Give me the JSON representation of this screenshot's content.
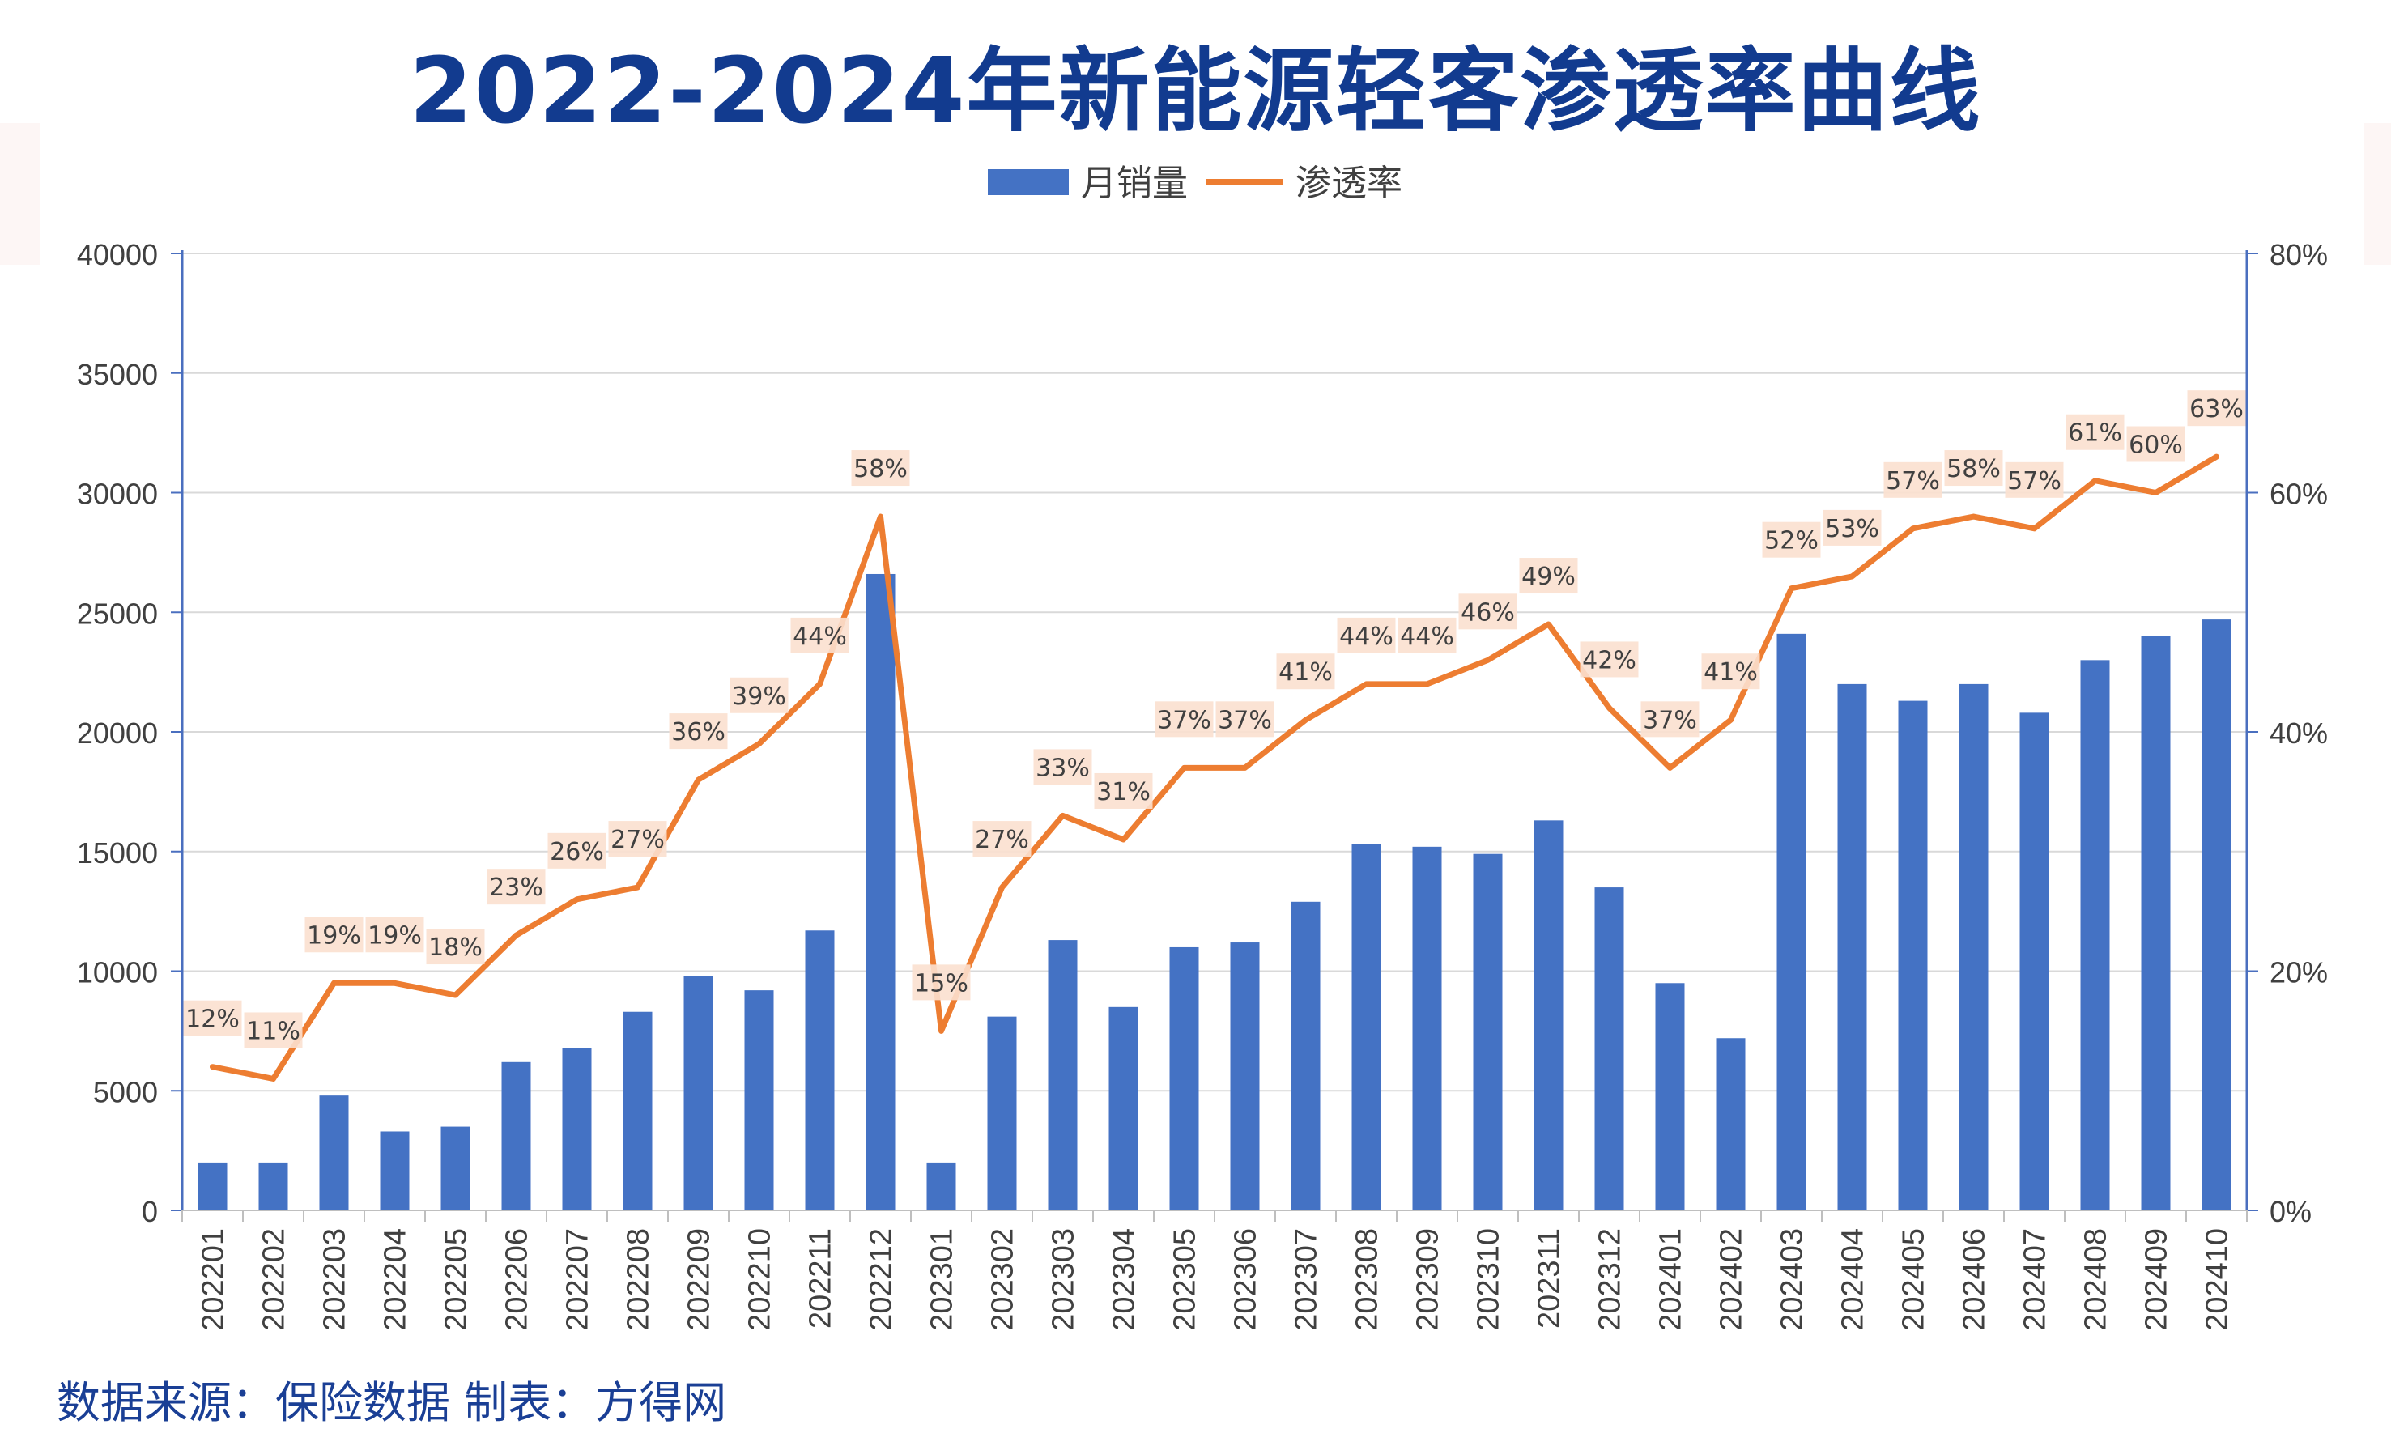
{
  "title": "2022-2024年新能源轻客渗透率曲线",
  "source_note": "数据来源：保险数据 制表：方得网",
  "chart_data": {
    "type": "bar",
    "categories": [
      "202201",
      "202202",
      "202203",
      "202204",
      "202205",
      "202206",
      "202207",
      "202208",
      "202209",
      "202210",
      "202211",
      "202212",
      "202301",
      "202302",
      "202303",
      "202304",
      "202305",
      "202306",
      "202307",
      "202308",
      "202309",
      "202310",
      "202311",
      "202312",
      "202401",
      "202402",
      "202403",
      "202404",
      "202405",
      "202406",
      "202407",
      "202408",
      "202409",
      "202410"
    ],
    "series": [
      {
        "name": "月销量",
        "type": "bar",
        "axis": "left",
        "color": "#4472c4",
        "values": [
          2000,
          2000,
          4800,
          3300,
          3500,
          6200,
          6800,
          8300,
          9800,
          9200,
          11700,
          26600,
          2000,
          8100,
          11300,
          8500,
          11000,
          11200,
          12900,
          15300,
          15200,
          14900,
          16300,
          13500,
          9500,
          7200,
          24100,
          22000,
          21300,
          22000,
          20800,
          23000,
          24000,
          24700
        ]
      },
      {
        "name": "渗透率",
        "type": "line",
        "axis": "right",
        "color": "#ed7d31",
        "values": [
          12,
          11,
          19,
          19,
          18,
          23,
          26,
          27,
          36,
          39,
          44,
          58,
          15,
          27,
          33,
          31,
          37,
          37,
          41,
          44,
          44,
          46,
          49,
          42,
          37,
          41,
          52,
          53,
          57,
          58,
          57,
          61,
          60,
          63
        ],
        "labels": [
          "12%",
          "11%",
          "19%",
          "19%",
          "18%",
          "23%",
          "26%",
          "27%",
          "36%",
          "39%",
          "44%",
          "58%",
          "15%",
          "27%",
          "33%",
          "31%",
          "37%",
          "37%",
          "41%",
          "44%",
          "44%",
          "46%",
          "49%",
          "42%",
          "37%",
          "41%",
          "52%",
          "53%",
          "57%",
          "58%",
          "57%",
          "61%",
          "60%",
          "63%"
        ]
      }
    ],
    "left_axis": {
      "ylim": [
        0,
        40000
      ],
      "ticks": [
        "0",
        "5000",
        "10000",
        "15000",
        "20000",
        "25000",
        "30000",
        "35000",
        "40000"
      ]
    },
    "right_axis": {
      "ylim": [
        0,
        80
      ],
      "ticks": [
        "0%",
        "20%",
        "40%",
        "60%",
        "80%"
      ]
    },
    "legend_position": "top-center",
    "grid": true,
    "colors": {
      "bar": "#4472c4",
      "line": "#ed7d31",
      "label_bg": "#fbe0cf",
      "axis": "#4a6fbf",
      "grid": "#d9d9d9",
      "title": "#123b8f"
    }
  }
}
